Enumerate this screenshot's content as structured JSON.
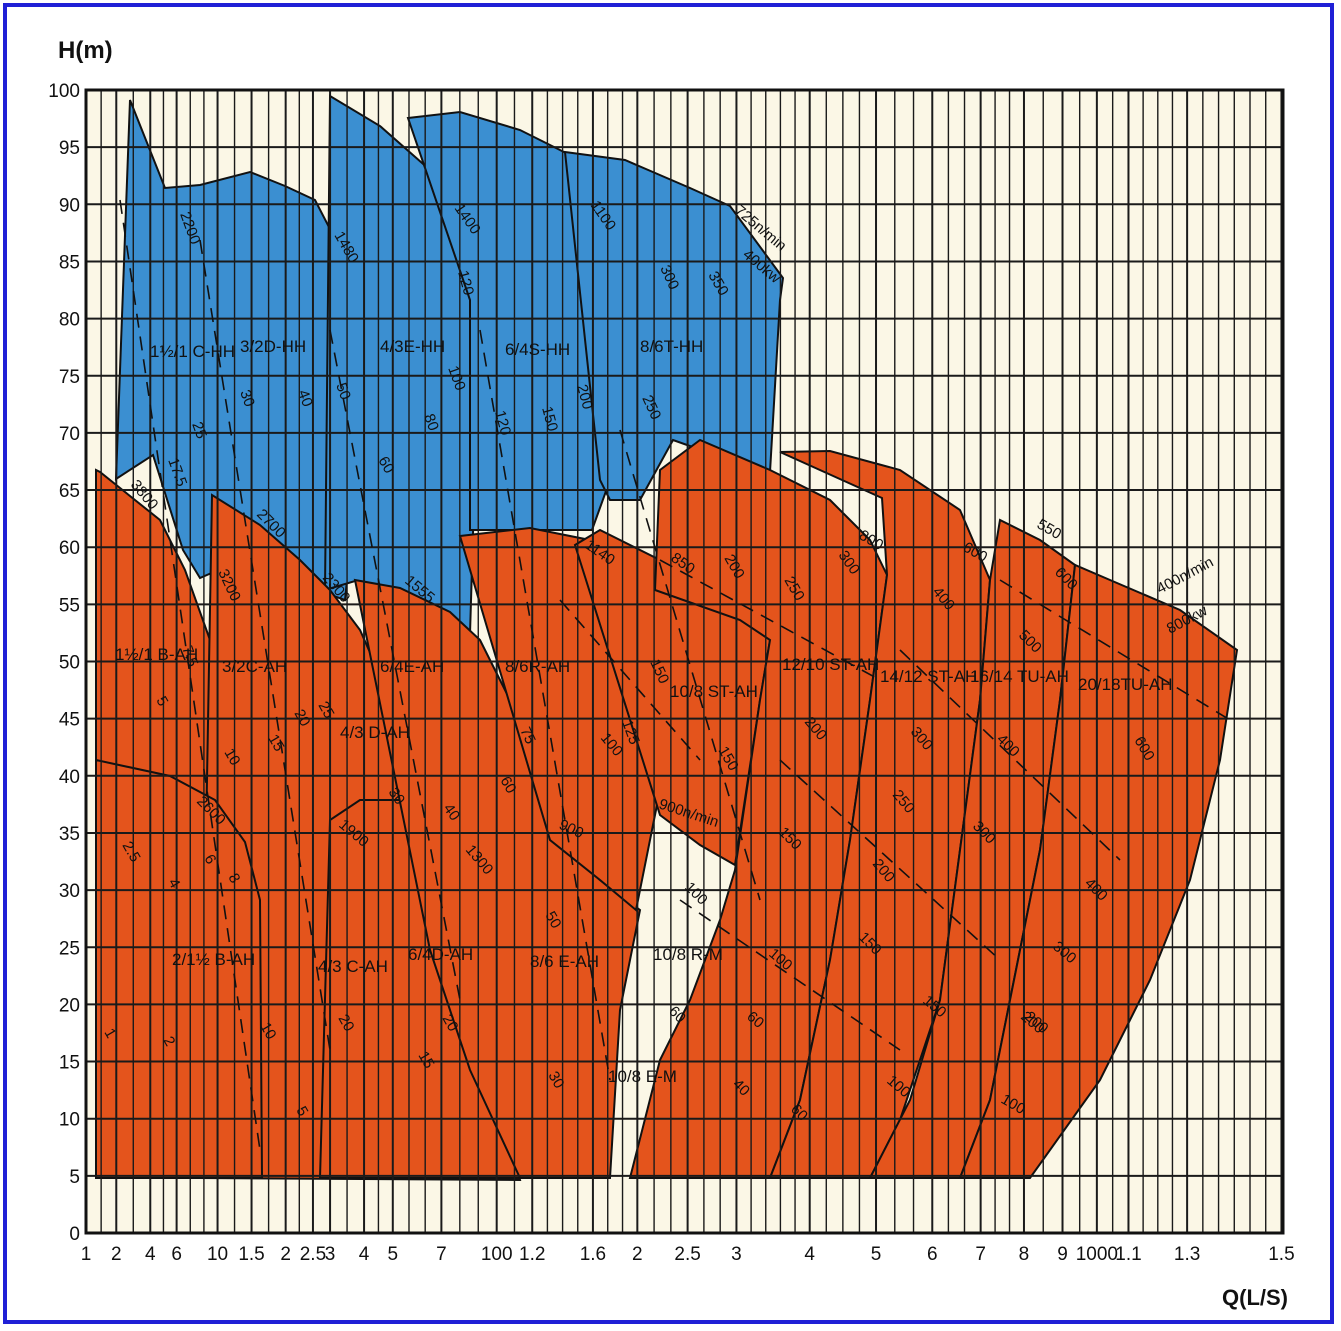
{
  "colors": {
    "frame": "#1f1fd6",
    "background": "#fbf7e6",
    "hh_region": "#3b8fd1",
    "ah_region": "#e4541c",
    "grid": "#1a1a1a"
  },
  "chart_data": {
    "type": "area",
    "title": "",
    "ylabel": "H(m)",
    "xlabel": "Q(L/S)",
    "ylim": [
      0,
      100
    ],
    "y_ticks": [
      "0",
      "5",
      "10",
      "15",
      "20",
      "25",
      "30",
      "35",
      "40",
      "45",
      "50",
      "55",
      "60",
      "65",
      "70",
      "75",
      "80",
      "85",
      "90",
      "95",
      "100"
    ],
    "x_ticks": [
      "1",
      "2",
      "4",
      "6",
      "10",
      "1.5",
      "2",
      "2.5",
      "3",
      "4",
      "5",
      "7",
      "100",
      "1.2",
      "1.6",
      "2",
      "2.5",
      "3",
      "4",
      "5",
      "6",
      "7",
      "8",
      "9",
      "1000",
      "1.1",
      "1.3",
      "1.5"
    ],
    "grid": true,
    "series": [
      {
        "name": "1½/1 C-HH",
        "group": "HH",
        "labels": [
          "2200",
          "25",
          "17.5",
          "3800"
        ]
      },
      {
        "name": "3/2D-HH",
        "group": "HH",
        "labels": [
          "30",
          "40",
          "50",
          "2700"
        ]
      },
      {
        "name": "4/3E-HH",
        "group": "HH",
        "labels": [
          "1480",
          "100",
          "80",
          "60",
          "2300",
          "1555"
        ]
      },
      {
        "name": "6/4S-HH",
        "group": "HH",
        "labels": [
          "1400",
          "120",
          "120",
          "150",
          "200"
        ]
      },
      {
        "name": "8/6T-HH",
        "group": "HH",
        "labels": [
          "1100",
          "300",
          "350",
          "250"
        ]
      },
      {
        "name": "1½/1 B-AH",
        "group": "AH",
        "labels": [
          "7.5",
          "5",
          "2.5",
          "1"
        ]
      },
      {
        "name": "2/1½ B-AH",
        "group": "AH",
        "labels": [
          "4",
          "6",
          "8",
          "2",
          "2600"
        ]
      },
      {
        "name": "3/2C-AH",
        "group": "AH",
        "labels": [
          "3200",
          "10",
          "15",
          "20",
          "25",
          "5"
        ]
      },
      {
        "name": "4/3 C-AH",
        "group": "AH",
        "labels": [
          "1900",
          "20",
          "10",
          "5"
        ]
      },
      {
        "name": "4/3 D-AH",
        "group": "AH",
        "labels": [
          "30",
          "40"
        ]
      },
      {
        "name": "6/4E-AH",
        "group": "AH",
        "labels": [
          "60",
          "1300"
        ]
      },
      {
        "name": "6/4D-AH",
        "group": "AH",
        "labels": [
          "20",
          "15"
        ]
      },
      {
        "name": "8/6R-AH",
        "group": "AH",
        "labels": [
          "1140",
          "75",
          "125",
          "100",
          "150",
          "900"
        ]
      },
      {
        "name": "8/6 E-AH",
        "group": "AH",
        "labels": [
          "50",
          "30"
        ]
      },
      {
        "name": "10/8 ST-AH",
        "group": "AH",
        "labels": [
          "850",
          "200",
          "150",
          "900n/min"
        ]
      },
      {
        "name": "10/8 R-M",
        "group": "AH",
        "labels": [
          "100",
          "60"
        ]
      },
      {
        "name": "10/8 E-M",
        "group": "AH",
        "labels": [
          "40",
          "60"
        ]
      },
      {
        "name": "12/10 ST-AH",
        "group": "AH",
        "labels": [
          "250",
          "300",
          "200",
          "150",
          "100",
          "60"
        ]
      },
      {
        "name": "14/12 ST-AH",
        "group": "AH",
        "labels": [
          "800",
          "400",
          "300",
          "250",
          "200",
          "150",
          "100"
        ]
      },
      {
        "name": "16/14 TU-AH",
        "group": "AH",
        "labels": [
          "600",
          "500",
          "400",
          "300",
          "200",
          "150"
        ]
      },
      {
        "name": "20/18TU-AH",
        "group": "AH",
        "labels": [
          "550",
          "600",
          "600",
          "400",
          "300",
          "200",
          "100"
        ]
      }
    ],
    "annotations": [
      "725n/min",
      "400kw",
      "400n/min",
      "800kw",
      "900n/min"
    ]
  }
}
